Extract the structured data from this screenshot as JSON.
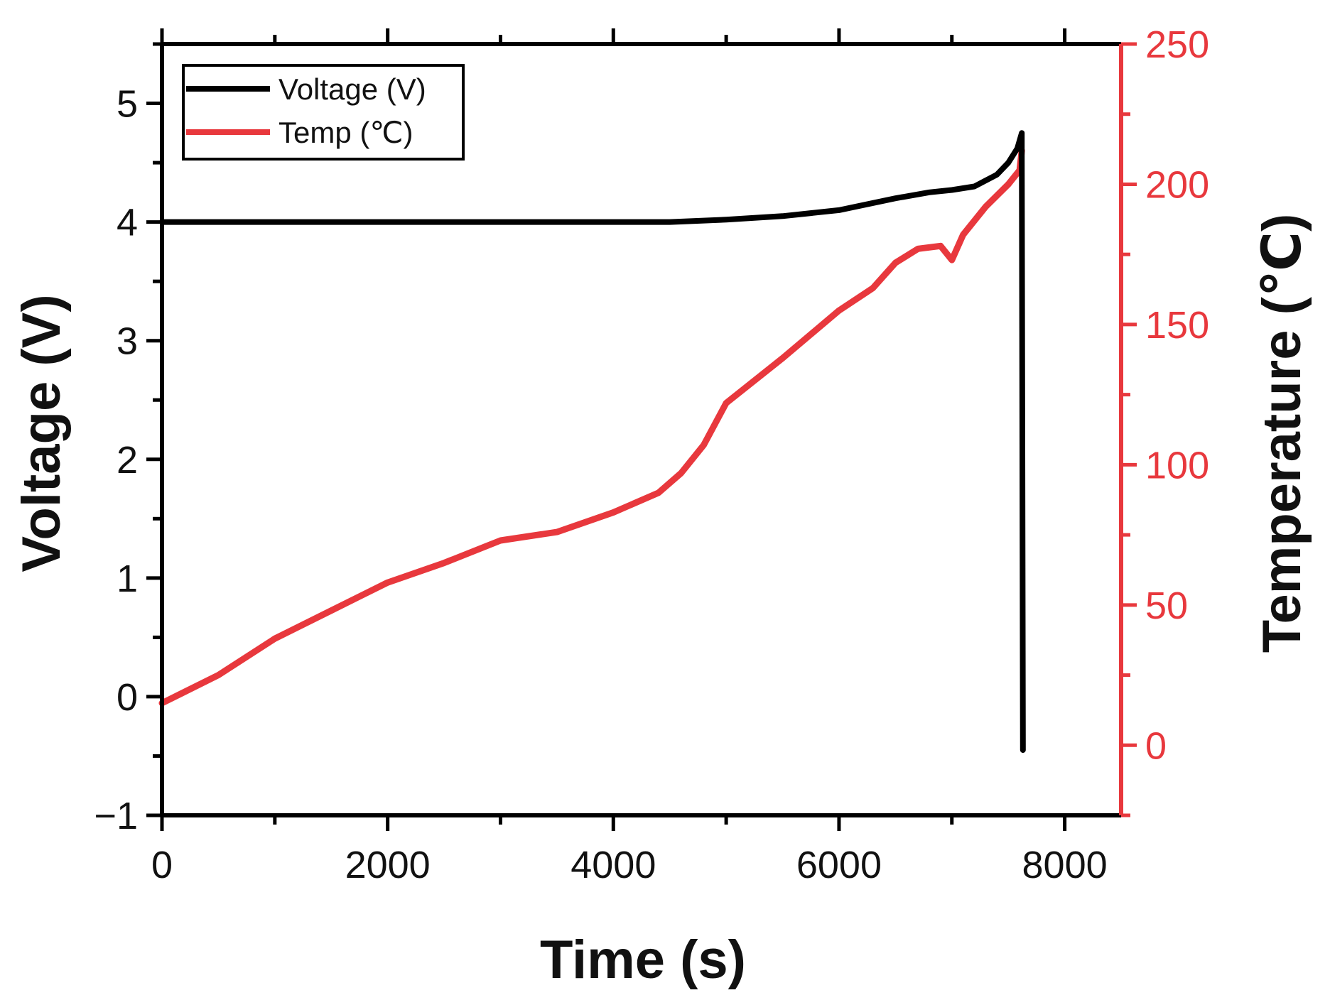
{
  "colors": {
    "voltage": "#000000",
    "temp": "#e8383d",
    "axis": "#000000",
    "right_axis": "#e8383d"
  },
  "chart_data": {
    "type": "line",
    "xlabel": "Time (s)",
    "ylabel": "Voltage (V)",
    "y2label": "Temperature (℃)",
    "xlim": [
      0,
      8500
    ],
    "ylim": [
      -1,
      5.5
    ],
    "y2lim": [
      -25,
      250
    ],
    "xticks": [
      0,
      2000,
      4000,
      6000,
      8000
    ],
    "xtick_labels": [
      "0",
      "2000",
      "4000",
      "6000",
      "8000"
    ],
    "yticks": [
      -1,
      0,
      1,
      2,
      3,
      4,
      5
    ],
    "ytick_labels": [
      "−1",
      "0",
      "1",
      "2",
      "3",
      "4",
      "5"
    ],
    "y2ticks": [
      0,
      50,
      100,
      150,
      200,
      250
    ],
    "y2tick_labels": [
      "0",
      "50",
      "100",
      "150",
      "200",
      "250"
    ],
    "grid": false,
    "legend_position": "top-left",
    "series": [
      {
        "name": "Voltage (V)",
        "axis": "left",
        "x": [
          0,
          1000,
          2000,
          3000,
          4000,
          4500,
          5000,
          5500,
          6000,
          6500,
          6800,
          7000,
          7200,
          7400,
          7500,
          7580,
          7620,
          7620,
          7630
        ],
        "y": [
          4.0,
          4.0,
          4.0,
          4.0,
          4.0,
          4.0,
          4.02,
          4.05,
          4.1,
          4.2,
          4.25,
          4.27,
          4.3,
          4.4,
          4.5,
          4.62,
          4.75,
          4.6,
          -0.45
        ]
      },
      {
        "name": "Temp (℃)",
        "axis": "right",
        "x": [
          0,
          500,
          1000,
          1500,
          2000,
          2500,
          3000,
          3500,
          4000,
          4400,
          4600,
          4800,
          5000,
          5500,
          6000,
          6300,
          6500,
          6700,
          6900,
          7000,
          7100,
          7300,
          7500,
          7600,
          7620
        ],
        "y": [
          15,
          25,
          38,
          48,
          58,
          65,
          73,
          76,
          83,
          90,
          97,
          107,
          122,
          138,
          155,
          163,
          172,
          177,
          178,
          173,
          182,
          192,
          200,
          205,
          212
        ]
      }
    ]
  }
}
